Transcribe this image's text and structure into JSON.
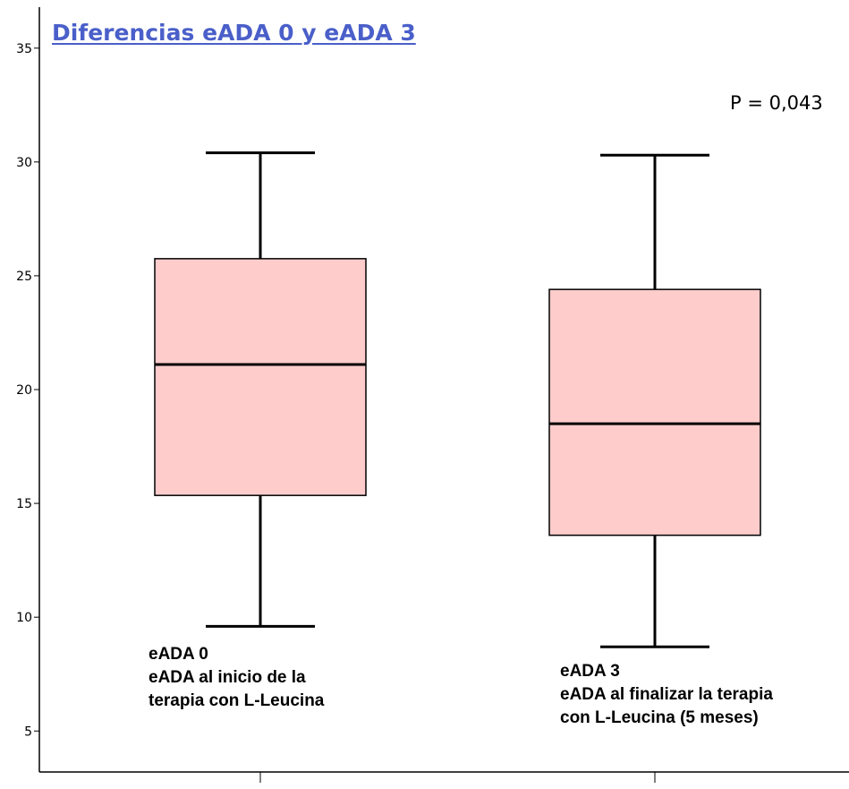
{
  "chart_data": {
    "type": "boxplot",
    "title": "Diferencias eADA 0 y eADA 3",
    "annotation": "P = 0,043",
    "ylim": [
      3.2,
      36.8
    ],
    "yticks": [
      5,
      10,
      15,
      20,
      25,
      30,
      35
    ],
    "grid": false,
    "colors": {
      "box_fill": "#ffcccc",
      "stroke": "#000000",
      "title": "#4a5fc9"
    },
    "series": [
      {
        "label_lines": [
          "eADA 0",
          "eADA al inicio de la",
          "terapia con L-Leucina"
        ],
        "min": 9.6,
        "q1": 15.35,
        "median": 21.1,
        "q3": 25.75,
        "max": 30.4
      },
      {
        "label_lines": [
          "eADA 3",
          "eADA al finalizar la terapia",
          "con L-Leucina (5 meses)"
        ],
        "min": 8.7,
        "q1": 13.6,
        "median": 18.5,
        "q3": 24.4,
        "max": 30.3
      }
    ]
  }
}
